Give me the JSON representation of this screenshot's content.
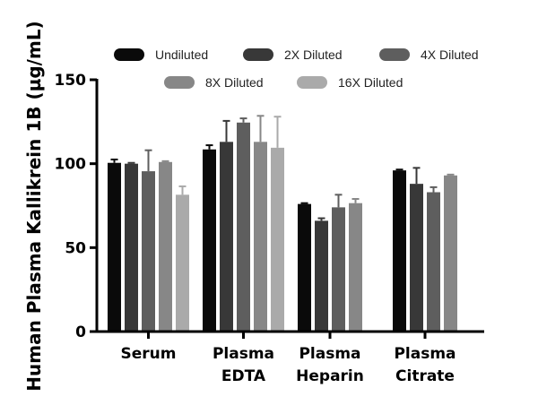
{
  "chart_data": {
    "type": "bar",
    "title": "",
    "xlabel": "",
    "ylabel": "Human Plasma Kallikrein 1B (µg/mL)",
    "ylim": [
      0,
      150
    ],
    "yticks": [
      "0",
      "50",
      "100",
      "150"
    ],
    "grid": false,
    "legend_placement": "top",
    "categories": [
      {
        "line1": "Serum",
        "line2": ""
      },
      {
        "line1": "Plasma",
        "line2": "EDTA"
      },
      {
        "line1": "Plasma",
        "line2": "Heparin"
      },
      {
        "line1": "Plasma",
        "line2": "Citrate"
      }
    ],
    "series": [
      {
        "name": "Undiluted",
        "color": "#0a0a0a",
        "values": [
          100.5,
          108.5,
          76,
          96
        ],
        "errors": [
          2,
          2.5,
          0.5,
          0.5
        ]
      },
      {
        "name": "2X Diluted",
        "color": "#383838",
        "values": [
          100,
          113,
          66,
          88
        ],
        "errors": [
          0.5,
          12.5,
          1.5,
          9.5
        ]
      },
      {
        "name": "4X Diluted",
        "color": "#5e5e5e",
        "values": [
          95.5,
          124.5,
          74,
          83
        ],
        "errors": [
          12.5,
          2.5,
          7.5,
          3
        ]
      },
      {
        "name": "8X Diluted",
        "color": "#878787",
        "values": [
          101,
          113,
          76.5,
          93
        ],
        "errors": [
          0.5,
          15.5,
          2.5,
          0.5
        ]
      },
      {
        "name": "16X Diluted",
        "color": "#aaaaaa",
        "values": [
          81.5,
          109.5,
          null,
          null
        ],
        "errors": [
          5,
          18.5,
          null,
          null
        ]
      }
    ]
  }
}
